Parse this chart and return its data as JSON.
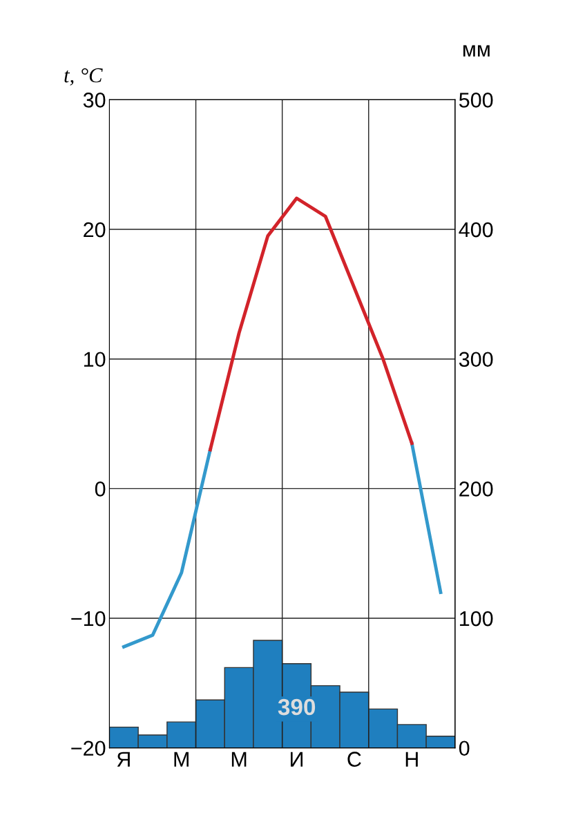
{
  "chart_data": {
    "type": "bar",
    "ylabel": "t, °C",
    "y2label": "мм",
    "categories": [
      "Я",
      null,
      "М",
      null,
      "М",
      null,
      "И",
      null,
      "С",
      null,
      "Н",
      null
    ],
    "ylim": [
      -20,
      30
    ],
    "yticks": [
      {
        "value": -20,
        "label": "−20"
      },
      {
        "value": -10,
        "label": "−10"
      },
      0,
      10,
      20,
      30
    ],
    "y2lim": [
      0,
      500
    ],
    "y2ticks": [
      0,
      100,
      200,
      300,
      400,
      500
    ],
    "grid": "y",
    "series": [
      {
        "axis": "y2",
        "color": "#1f7fbf",
        "values": [
          16,
          10,
          20,
          37,
          62,
          83,
          65,
          48,
          43,
          30,
          18,
          9
        ]
      },
      {
        "type": "line",
        "axis": "y",
        "color": "#3399cc",
        "values": [
          -12.2,
          -11.3,
          -6.5,
          3,
          null,
          null,
          null,
          null,
          null,
          null,
          3.5,
          -8
        ]
      },
      {
        "type": "line",
        "axis": "y",
        "color": "#d2232a",
        "values": [
          null,
          null,
          null,
          3,
          12,
          19.5,
          22.4,
          21,
          15.5,
          10,
          3.5,
          null
        ]
      }
    ],
    "annotations": [
      "390"
    ]
  }
}
